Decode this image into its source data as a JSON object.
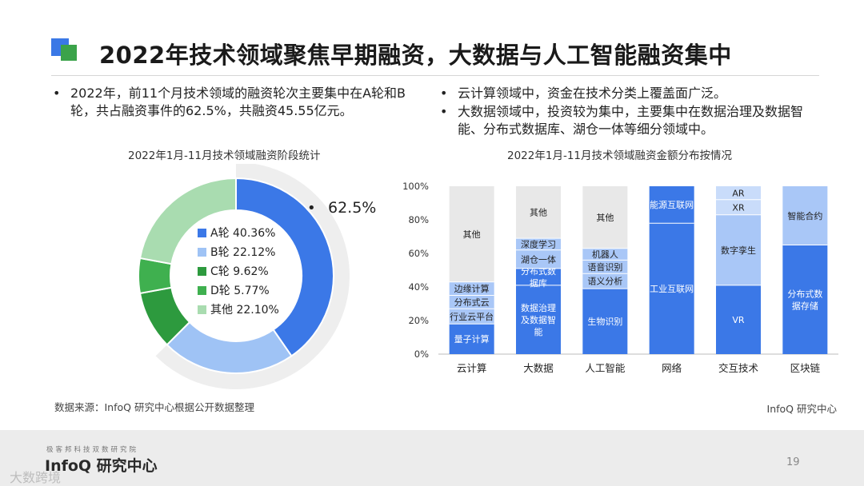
{
  "title": "2022年技术领域聚焦早期融资，大数据与人工智能融资集中",
  "left_bullets": [
    "2022年，前11个月技术领域的融资轮次主要集中在A轮和B轮，共占融资事件的62.5%，共融资45.55亿元。"
  ],
  "right_bullets": [
    "云计算领域中，资金在技术分类上覆盖面广泛。",
    "大数据领域中，投资较为集中，主要集中在数据治理及数据智能、分布式数据库、湖仓一体等细分领域中。"
  ],
  "source_note": "数据来源：InfoQ 研究中心根据公开数据整理",
  "credit": "InfoQ 研究中心",
  "footer": {
    "small": "极客邦科技双数研究院",
    "brand": "InfoQ 研究中心",
    "watermark": "大数跨境",
    "page": "19"
  },
  "colors": {
    "accent_blue": "#3a78e6",
    "accent_green": "#3ba34a",
    "a_round": "#3b78e7",
    "b_round": "#9fc3f5",
    "c_round": "#2d9a3e",
    "d_round": "#3fb04f",
    "other": "#a9dcb0",
    "stack_top": "#e8e8e8"
  },
  "chart_data": [
    {
      "type": "pie",
      "title": "2022年1月-11月技术领域融资阶段统计",
      "categories": [
        "A轮",
        "B轮",
        "C轮",
        "D轮",
        "其他"
      ],
      "values": [
        40.36,
        22.12,
        9.62,
        5.77,
        22.1
      ],
      "legend_labels": [
        "A轮 40.36%",
        "B轮 22.12%",
        "C轮 9.62%",
        "D轮 5.77%",
        "其他 22.10%"
      ],
      "callout": "62.5%",
      "donut": true
    },
    {
      "type": "bar",
      "stacked": true,
      "title": "2022年1月-11月技术领域融资金额分布按情况",
      "categories": [
        "云计算",
        "大数据",
        "人工智能",
        "网络",
        "交互技术",
        "区块链"
      ],
      "yticks": [
        "0%",
        "20%",
        "40%",
        "60%",
        "80%",
        "100%"
      ],
      "ylim": [
        0,
        100
      ],
      "stacks": [
        [
          {
            "label": "量子计算",
            "value": 18,
            "shade": "dark"
          },
          {
            "label": "行业云平台",
            "value": 9,
            "shade": "light"
          },
          {
            "label": "分布式云",
            "value": 8,
            "shade": "light"
          },
          {
            "label": "边缘计算",
            "value": 8,
            "shade": "light"
          },
          {
            "label": "其他",
            "value": 57,
            "shade": "gray"
          }
        ],
        [
          {
            "label": "数据治理及数据智能",
            "value": 41,
            "shade": "dark"
          },
          {
            "label": "分布式数据库",
            "value": 10,
            "shade": "dark"
          },
          {
            "label": "湖仓一体",
            "value": 11,
            "shade": "light"
          },
          {
            "label": "深度学习",
            "value": 7,
            "shade": "light"
          },
          {
            "label": "其他",
            "value": 31,
            "shade": "gray"
          }
        ],
        [
          {
            "label": "生物识别",
            "value": 39,
            "shade": "dark"
          },
          {
            "label": "语义分析",
            "value": 9,
            "shade": "light"
          },
          {
            "label": "语音识别",
            "value": 8,
            "shade": "light"
          },
          {
            "label": "机器人",
            "value": 7,
            "shade": "light"
          },
          {
            "label": "其他",
            "value": 37,
            "shade": "gray"
          }
        ],
        [
          {
            "label": "工业互联网",
            "value": 78,
            "shade": "dark"
          },
          {
            "label": "能源互联网",
            "value": 22,
            "shade": "dark"
          }
        ],
        [
          {
            "label": "VR",
            "value": 41,
            "shade": "dark"
          },
          {
            "label": "数字孪生",
            "value": 42,
            "shade": "light"
          },
          {
            "label": "XR",
            "value": 9,
            "shade": "lighter"
          },
          {
            "label": "AR",
            "value": 8,
            "shade": "lighter"
          }
        ],
        [
          {
            "label": "分布式数据存储",
            "value": 65,
            "shade": "dark"
          },
          {
            "label": "智能合约",
            "value": 35,
            "shade": "light"
          }
        ]
      ]
    }
  ]
}
